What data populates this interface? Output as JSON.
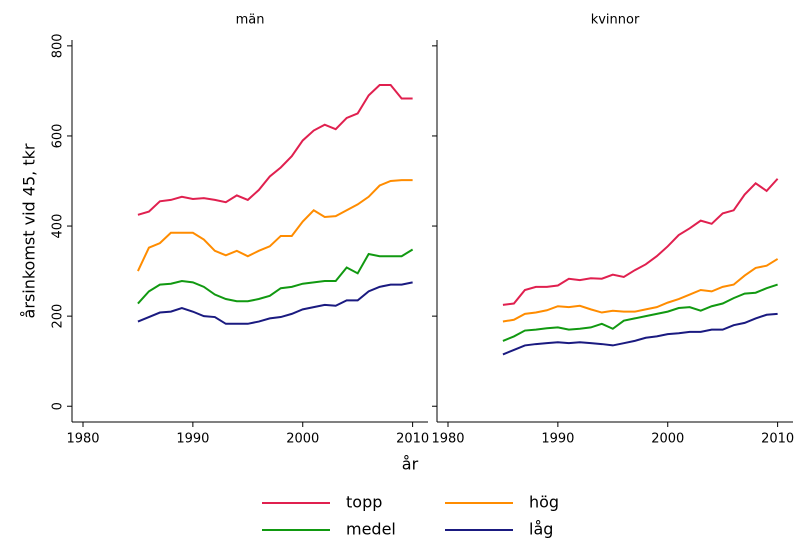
{
  "chart_data": [
    {
      "type": "line",
      "title": "män",
      "x_label": "år",
      "y_label": "årsinkomst vid 45, tkr",
      "x": [
        1985,
        1986,
        1987,
        1988,
        1989,
        1990,
        1991,
        1992,
        1993,
        1994,
        1995,
        1996,
        1997,
        1998,
        1999,
        2000,
        2001,
        2002,
        2003,
        2004,
        2005,
        2006,
        2007,
        2008,
        2009,
        2010
      ],
      "xlim": [
        1979,
        2011.4
      ],
      "xticks": [
        1980,
        1990,
        2000,
        2010
      ],
      "ylim": [
        -35,
        813
      ],
      "yticks": [
        0,
        200,
        400,
        600,
        800
      ],
      "series": [
        {
          "name": "topp",
          "color": "#e0204f",
          "values": [
            425,
            432,
            455,
            458,
            465,
            460,
            462,
            458,
            453,
            468,
            458,
            480,
            510,
            530,
            555,
            590,
            612,
            625,
            615,
            640,
            650,
            690,
            713,
            713,
            683,
            683
          ]
        },
        {
          "name": "hög",
          "color": "#ff8c00",
          "values": [
            300,
            352,
            362,
            385,
            385,
            385,
            370,
            345,
            335,
            345,
            333,
            345,
            355,
            378,
            378,
            410,
            435,
            420,
            422,
            435,
            448,
            465,
            490,
            500,
            502,
            502
          ]
        },
        {
          "name": "medel",
          "color": "#119911",
          "values": [
            228,
            255,
            270,
            272,
            278,
            275,
            265,
            248,
            238,
            233,
            233,
            238,
            245,
            262,
            265,
            272,
            275,
            278,
            278,
            308,
            295,
            338,
            333,
            333,
            333,
            348
          ]
        },
        {
          "name": "låg",
          "color": "#1a1a80",
          "values": [
            188,
            198,
            208,
            210,
            218,
            210,
            200,
            198,
            183,
            183,
            183,
            188,
            195,
            198,
            205,
            215,
            220,
            225,
            223,
            235,
            235,
            255,
            265,
            270,
            270,
            275
          ]
        }
      ]
    },
    {
      "type": "line",
      "title": "kvinnor",
      "x": [
        1985,
        1986,
        1987,
        1988,
        1989,
        1990,
        1991,
        1992,
        1993,
        1994,
        1995,
        1996,
        1997,
        1998,
        1999,
        2000,
        2001,
        2002,
        2003,
        2004,
        2005,
        2006,
        2007,
        2008,
        2009,
        2010
      ],
      "xlim": [
        1979,
        2011.4
      ],
      "xticks": [
        1980,
        1990,
        2000,
        2010
      ],
      "ylim": [
        -35,
        813
      ],
      "series": [
        {
          "color": "#e0204f",
          "values": [
            225,
            228,
            258,
            265,
            265,
            268,
            283,
            280,
            284,
            283,
            292,
            287,
            302,
            315,
            333,
            355,
            380,
            395,
            412,
            405,
            428,
            435,
            470,
            495,
            478,
            505
          ]
        },
        {
          "color": "#ff8c00",
          "values": [
            188,
            192,
            205,
            208,
            213,
            222,
            220,
            223,
            215,
            208,
            212,
            210,
            210,
            215,
            220,
            230,
            238,
            248,
            258,
            255,
            265,
            270,
            290,
            307,
            312,
            327
          ]
        },
        {
          "color": "#119911",
          "values": [
            145,
            155,
            168,
            170,
            173,
            175,
            170,
            172,
            175,
            183,
            172,
            190,
            195,
            200,
            205,
            210,
            218,
            220,
            212,
            222,
            228,
            240,
            250,
            252,
            262,
            270
          ]
        },
        {
          "color": "#1a1a80",
          "values": [
            115,
            125,
            135,
            138,
            140,
            142,
            140,
            142,
            140,
            138,
            135,
            140,
            145,
            152,
            155,
            160,
            162,
            165,
            165,
            170,
            170,
            180,
            185,
            195,
            203,
            205
          ]
        }
      ]
    }
  ]
}
